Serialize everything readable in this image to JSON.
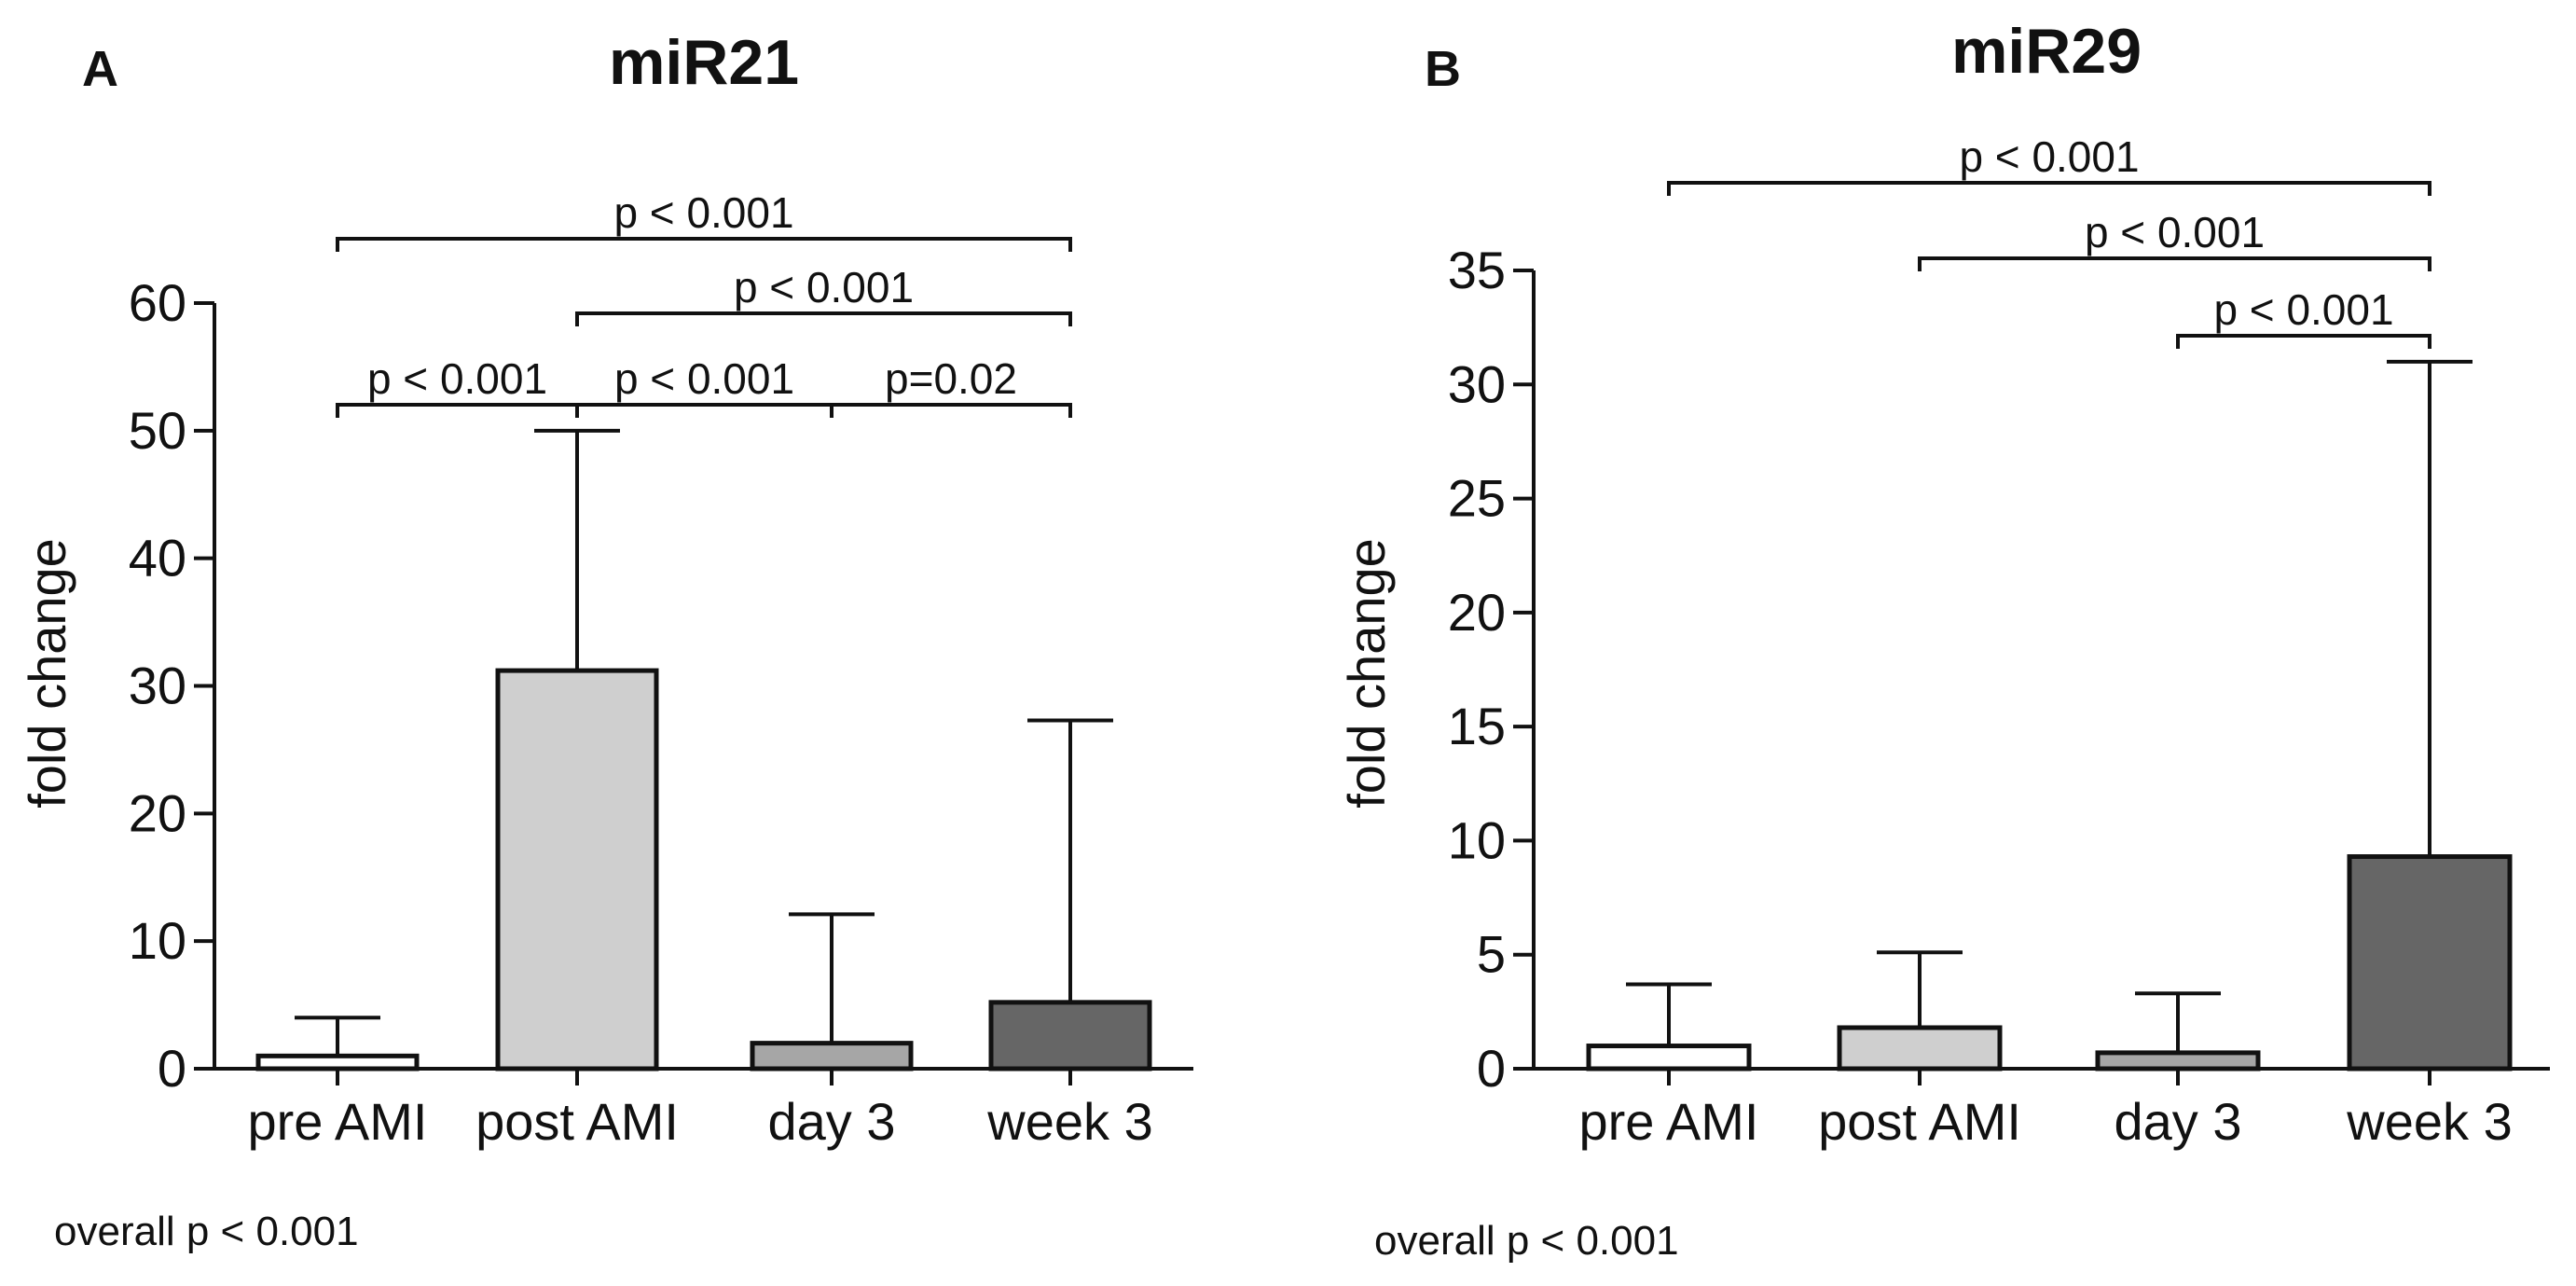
{
  "chart_data": [
    {
      "type": "bar",
      "panel": "A",
      "title": "miR21",
      "ylabel": "fold change",
      "xlabel": "",
      "ylim": [
        0,
        60
      ],
      "yticks": [
        0,
        10,
        20,
        30,
        40,
        50,
        60
      ],
      "categories": [
        "pre AMI",
        "post AMI",
        "day 3",
        "week 3"
      ],
      "values": [
        1.0,
        31.2,
        2.0,
        5.2
      ],
      "error_upper": [
        4.0,
        50.0,
        12.1,
        27.3
      ],
      "colors": [
        "#ffffff",
        "#cfcfcf",
        "#a6a6a6",
        "#666666"
      ],
      "significance": [
        {
          "from": 0,
          "to": 3,
          "label": "p < 0.001",
          "level": 3
        },
        {
          "from": 1,
          "to": 3,
          "label": "p < 0.001",
          "level": 2
        },
        {
          "from": 0,
          "to": 1,
          "label": "p < 0.001",
          "level": 1
        },
        {
          "from": 1,
          "to": 2,
          "label": "p < 0.001",
          "level": 1
        },
        {
          "from": 2,
          "to": 3,
          "label": "p=0.02",
          "level": 1
        }
      ],
      "footnote": "overall p < 0.001"
    },
    {
      "type": "bar",
      "panel": "B",
      "title": "miR29",
      "ylabel": "fold change",
      "xlabel": "",
      "ylim": [
        0,
        35
      ],
      "yticks": [
        0,
        5,
        10,
        15,
        20,
        25,
        30,
        35
      ],
      "categories": [
        "pre AMI",
        "post AMI",
        "day 3",
        "week 3"
      ],
      "values": [
        1.0,
        1.8,
        0.7,
        9.3
      ],
      "error_upper": [
        3.7,
        5.1,
        3.3,
        31.0
      ],
      "colors": [
        "#ffffff",
        "#cfcfcf",
        "#a6a6a6",
        "#666666"
      ],
      "significance": [
        {
          "from": 0,
          "to": 3,
          "label": "p < 0.001",
          "level": 3
        },
        {
          "from": 1,
          "to": 3,
          "label": "p < 0.001",
          "level": 2
        },
        {
          "from": 2,
          "to": 3,
          "label": "p < 0.001",
          "level": 1
        }
      ],
      "footnote": "overall p < 0.001"
    }
  ]
}
